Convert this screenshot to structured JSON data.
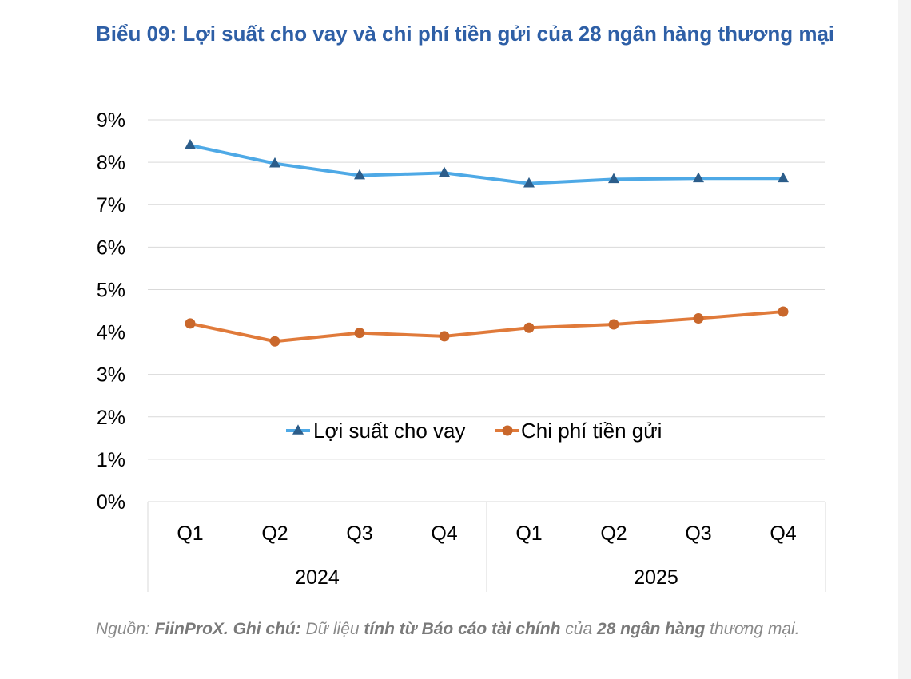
{
  "title": "Biểu 09: Lợi suất cho vay và chi phí tiền gửi của 28 ngân hàng thương mại",
  "source": {
    "prefix": "Nguồn: ",
    "provider": "FiinProX.",
    "note_label": " Ghi chú: ",
    "text1": "Dữ liệu ",
    "text2": "tính từ ",
    "text3": "Báo cáo tài chính",
    "text4": " của ",
    "text5": "28 ngân hàng",
    "text6": " thương mại."
  },
  "chart_data": {
    "type": "line",
    "categories": [
      "Q1",
      "Q2",
      "Q3",
      "Q4",
      "Q1",
      "Q2",
      "Q3",
      "Q4"
    ],
    "groups": [
      {
        "label": "2024",
        "span": 4
      },
      {
        "label": "2025",
        "span": 4
      }
    ],
    "ylim": [
      0,
      9
    ],
    "yticks": [
      "0%",
      "1%",
      "2%",
      "3%",
      "4%",
      "5%",
      "6%",
      "7%",
      "8%",
      "9%"
    ],
    "grid": true,
    "legend_position": "inside-bottom-center",
    "series": [
      {
        "name": "Lợi suất cho vay",
        "marker": "triangle",
        "color": "#4ea9e6",
        "marker_color": "#2c5d8a",
        "values": [
          8.4,
          7.97,
          7.69,
          7.75,
          7.5,
          7.6,
          7.62,
          7.62
        ]
      },
      {
        "name": "Chi phí tiền gửi",
        "marker": "circle",
        "color": "#e07a3a",
        "marker_color": "#c9672b",
        "values": [
          4.2,
          3.78,
          3.98,
          3.9,
          4.1,
          4.18,
          4.32,
          4.48
        ]
      }
    ]
  }
}
